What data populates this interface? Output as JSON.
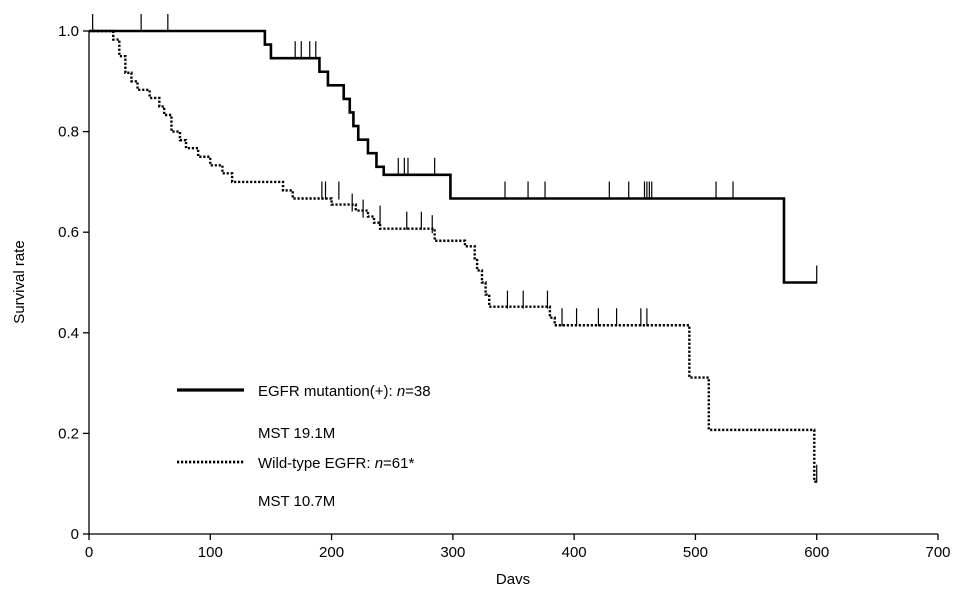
{
  "chart_data": {
    "type": "line",
    "title": "",
    "xlabel": "Davs",
    "ylabel": "Survival rate",
    "xlim": [
      0,
      700
    ],
    "ylim": [
      0,
      1.0
    ],
    "x_ticks": [
      "0",
      "100",
      "200",
      "300",
      "400",
      "500",
      "600",
      "700"
    ],
    "y_ticks": [
      "0",
      "0.2",
      "0.4",
      "0.6",
      "0.8",
      "1.0"
    ],
    "grid": false,
    "legend_placement": "bottom-left",
    "series": [
      {
        "name": "EGFR mutantion(+)",
        "n_label": "n",
        "n_value": "=38",
        "mst": "MST 19.1M",
        "style": "solid",
        "color": "#000000",
        "steps": [
          [
            0,
            1.0
          ],
          [
            145,
            0.973
          ],
          [
            150,
            0.946
          ],
          [
            190,
            0.919
          ],
          [
            197,
            0.892
          ],
          [
            210,
            0.865
          ],
          [
            215,
            0.838
          ],
          [
            218,
            0.811
          ],
          [
            222,
            0.784
          ],
          [
            230,
            0.757
          ],
          [
            237,
            0.73
          ],
          [
            243,
            0.714
          ],
          [
            298,
            0.667
          ],
          [
            573,
            0.5
          ],
          [
            600,
            0.5
          ]
        ],
        "censored": [
          [
            3,
            1.0
          ],
          [
            43,
            1.0
          ],
          [
            65,
            1.0
          ],
          [
            170,
            0.946
          ],
          [
            175,
            0.946
          ],
          [
            182,
            0.946
          ],
          [
            187,
            0.946
          ],
          [
            255,
            0.714
          ],
          [
            260,
            0.714
          ],
          [
            263,
            0.714
          ],
          [
            285,
            0.714
          ],
          [
            343,
            0.667
          ],
          [
            362,
            0.667
          ],
          [
            376,
            0.667
          ],
          [
            429,
            0.667
          ],
          [
            445,
            0.667
          ],
          [
            458,
            0.667
          ],
          [
            460,
            0.667
          ],
          [
            462,
            0.667
          ],
          [
            464,
            0.667
          ],
          [
            517,
            0.667
          ],
          [
            531,
            0.667
          ],
          [
            600,
            0.5
          ]
        ]
      },
      {
        "name": "Wild-type EGFR",
        "n_label": "n",
        "n_value": "=61*",
        "mst": "MST 10.7M",
        "style": "dotted",
        "color": "#000000",
        "steps": [
          [
            0,
            1.0
          ],
          [
            20,
            0.983
          ],
          [
            25,
            0.95
          ],
          [
            30,
            0.917
          ],
          [
            35,
            0.9
          ],
          [
            40,
            0.883
          ],
          [
            50,
            0.867
          ],
          [
            58,
            0.85
          ],
          [
            62,
            0.833
          ],
          [
            68,
            0.8
          ],
          [
            75,
            0.783
          ],
          [
            80,
            0.767
          ],
          [
            90,
            0.75
          ],
          [
            100,
            0.733
          ],
          [
            110,
            0.717
          ],
          [
            118,
            0.7
          ],
          [
            130,
            0.7
          ],
          [
            160,
            0.683
          ],
          [
            168,
            0.667
          ],
          [
            200,
            0.655
          ],
          [
            220,
            0.643
          ],
          [
            230,
            0.631
          ],
          [
            235,
            0.619
          ],
          [
            240,
            0.607
          ],
          [
            285,
            0.583
          ],
          [
            310,
            0.572
          ],
          [
            318,
            0.548
          ],
          [
            320,
            0.524
          ],
          [
            324,
            0.5
          ],
          [
            327,
            0.476
          ],
          [
            330,
            0.452
          ],
          [
            380,
            0.43
          ],
          [
            384,
            0.415
          ],
          [
            495,
            0.311
          ],
          [
            511,
            0.207
          ],
          [
            598,
            0.104
          ],
          [
            600,
            0.104
          ]
        ],
        "censored": [
          [
            192,
            0.667
          ],
          [
            195,
            0.667
          ],
          [
            206,
            0.667
          ],
          [
            217,
            0.643
          ],
          [
            226,
            0.631
          ],
          [
            240,
            0.619
          ],
          [
            262,
            0.607
          ],
          [
            274,
            0.607
          ],
          [
            283,
            0.6
          ],
          [
            345,
            0.45
          ],
          [
            358,
            0.45
          ],
          [
            378,
            0.45
          ],
          [
            390,
            0.415
          ],
          [
            402,
            0.415
          ],
          [
            420,
            0.415
          ],
          [
            435,
            0.415
          ],
          [
            455,
            0.415
          ],
          [
            460,
            0.415
          ],
          [
            600,
            0.104
          ]
        ]
      }
    ]
  }
}
